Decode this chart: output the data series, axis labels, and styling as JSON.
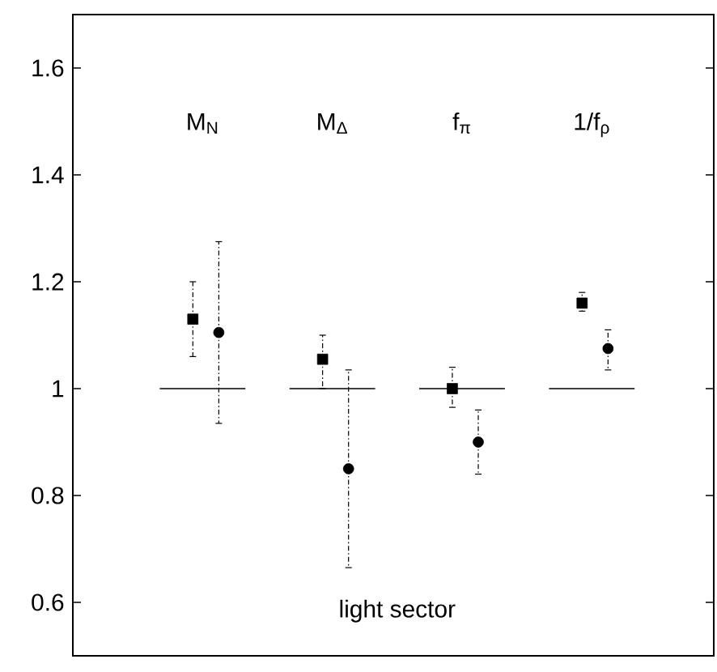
{
  "chart_data": {
    "type": "scatter",
    "categories": [
      "M$_{N}$",
      "M$_{Δ}$",
      "f$_{π}$",
      "1/f$_{ρ}$"
    ],
    "series": [
      {
        "marker": "square",
        "color": "#000000",
        "values": [
          1.13,
          1.055,
          1.0,
          1.16
        ],
        "errors": [
          [
            1.06,
            1.2
          ],
          [
            1.0,
            1.1
          ],
          [
            0.965,
            1.04
          ],
          [
            1.145,
            1.18
          ]
        ]
      },
      {
        "marker": "circle",
        "color": "#000000",
        "values": [
          1.105,
          0.85,
          0.9,
          1.075
        ],
        "errors": [
          [
            0.935,
            1.275
          ],
          [
            0.665,
            1.035
          ],
          [
            0.84,
            0.96
          ],
          [
            1.035,
            1.11
          ]
        ]
      }
    ],
    "ylim": [
      0.5,
      1.7
    ],
    "yticks": [
      0.6,
      0.8,
      1,
      1.2,
      1.4,
      1.6
    ],
    "tick_labels": "y",
    "grid": false,
    "ref_lines": [
      {
        "axis": "y",
        "value": 1,
        "color": "#000000"
      }
    ],
    "annotations": [
      "light sector"
    ]
  }
}
